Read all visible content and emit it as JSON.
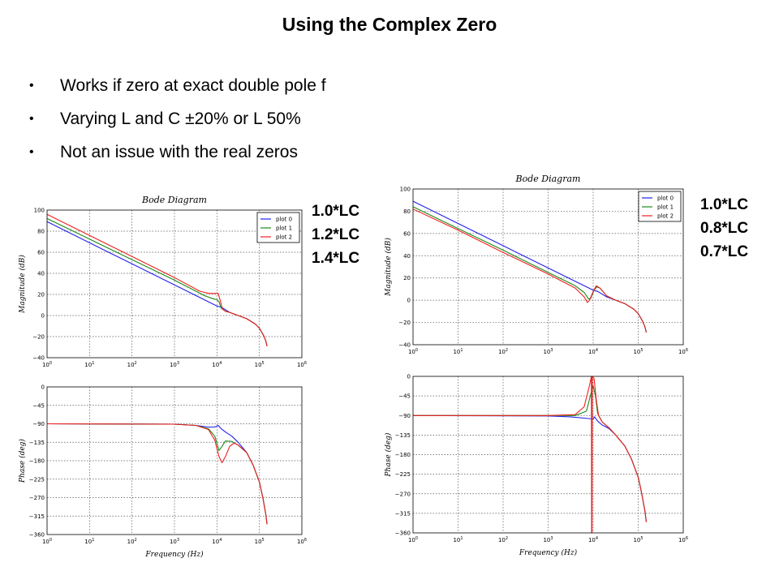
{
  "slide": {
    "title": "Using the Complex Zero",
    "bullets": [
      "Works if zero at exact double pole f",
      "Varying L and C ±20% or L 50%",
      "Not an issue with the real zeros"
    ],
    "left_labels": [
      "1.0*LC",
      "1.2*LC",
      "1.4*LC"
    ],
    "right_labels": [
      "1.0*LC",
      "0.8*LC",
      "0.7*LC"
    ]
  },
  "colors": {
    "plot0": "#2020ee",
    "plot1": "#1a8a1a",
    "plot2": "#ee2020"
  },
  "chart_data": [
    {
      "id": "left-magnitude",
      "type": "line",
      "title": "Bode Diagram",
      "xlabel": "",
      "ylabel": "Magnitude (dB)",
      "xscale": "log",
      "x_tick_base": "10",
      "x_tick_exponents": [
        0,
        1,
        2,
        3,
        4,
        5,
        6
      ],
      "xlim_log10": [
        0,
        6
      ],
      "ylim": [
        -40,
        100
      ],
      "yticks": [
        -40,
        -20,
        0,
        20,
        40,
        60,
        80,
        100
      ],
      "grid": true,
      "legend": "top-right",
      "series": [
        {
          "name": "plot 0",
          "points_log10x": [
            [
              0,
              89
            ],
            [
              1,
              69
            ],
            [
              2,
              49
            ],
            [
              3,
              29
            ],
            [
              3.8,
              13
            ],
            [
              4,
              9
            ],
            [
              4.1,
              8
            ],
            [
              4.3,
              3
            ],
            [
              4.5,
              0
            ],
            [
              4.7,
              -3
            ],
            [
              4.9,
              -8
            ],
            [
              5,
              -12
            ],
            [
              5.1,
              -19
            ],
            [
              5.15,
              -24
            ],
            [
              5.18,
              -29
            ]
          ]
        },
        {
          "name": "plot 1",
          "points_log10x": [
            [
              0,
              92
            ],
            [
              1,
              72.5
            ],
            [
              2,
              53
            ],
            [
              3,
              33.5
            ],
            [
              3.7,
              19
            ],
            [
              3.9,
              16
            ],
            [
              4,
              15
            ],
            [
              4.05,
              13
            ],
            [
              4.1,
              7
            ],
            [
              4.2,
              4
            ],
            [
              4.3,
              3
            ],
            [
              4.5,
              0
            ],
            [
              4.7,
              -3
            ],
            [
              4.9,
              -8
            ],
            [
              5,
              -12
            ],
            [
              5.1,
              -19
            ],
            [
              5.15,
              -24
            ],
            [
              5.18,
              -29
            ]
          ]
        },
        {
          "name": "plot 2",
          "points_log10x": [
            [
              0,
              96
            ],
            [
              1,
              76
            ],
            [
              2,
              56
            ],
            [
              3,
              36
            ],
            [
              3.6,
              23
            ],
            [
              3.8,
              21
            ],
            [
              3.95,
              21
            ],
            [
              4.03,
              21
            ],
            [
              4.08,
              14
            ],
            [
              4.13,
              6
            ],
            [
              4.2,
              4
            ],
            [
              4.3,
              3
            ],
            [
              4.5,
              0
            ],
            [
              4.7,
              -3
            ],
            [
              4.9,
              -8
            ],
            [
              5,
              -12
            ],
            [
              5.1,
              -19
            ],
            [
              5.15,
              -24
            ],
            [
              5.18,
              -29
            ]
          ]
        }
      ]
    },
    {
      "id": "left-phase",
      "type": "line",
      "title": "",
      "xlabel": "Frequency (Hz)",
      "ylabel": "Phase (deg)",
      "xscale": "log",
      "x_tick_base": "10",
      "x_tick_exponents": [
        0,
        1,
        2,
        3,
        4,
        5,
        6
      ],
      "xlim_log10": [
        0,
        6
      ],
      "ylim": [
        -360,
        0
      ],
      "yticks": [
        -360,
        -315,
        -270,
        -225,
        -180,
        -135,
        -90,
        -45,
        0
      ],
      "grid": true,
      "legend": "none",
      "series": [
        {
          "name": "plot 0",
          "points_log10x": [
            [
              0,
              -90
            ],
            [
              3,
              -91
            ],
            [
              3.5,
              -94
            ],
            [
              3.8,
              -98
            ],
            [
              3.95,
              -98
            ],
            [
              4.03,
              -94
            ],
            [
              4.1,
              -102
            ],
            [
              4.2,
              -110
            ],
            [
              4.35,
              -120
            ],
            [
              4.5,
              -135
            ],
            [
              4.7,
              -160
            ],
            [
              4.85,
              -190
            ],
            [
              5,
              -232
            ],
            [
              5.08,
              -270
            ],
            [
              5.15,
              -310
            ],
            [
              5.18,
              -335
            ]
          ]
        },
        {
          "name": "plot 1",
          "points_log10x": [
            [
              0,
              -90
            ],
            [
              3,
              -91
            ],
            [
              3.5,
              -94
            ],
            [
              3.8,
              -102
            ],
            [
              3.95,
              -120
            ],
            [
              4.05,
              -155
            ],
            [
              4.12,
              -145
            ],
            [
              4.2,
              -132
            ],
            [
              4.35,
              -133
            ],
            [
              4.5,
              -142
            ],
            [
              4.7,
              -160
            ],
            [
              4.85,
              -190
            ],
            [
              5,
              -232
            ],
            [
              5.08,
              -270
            ],
            [
              5.15,
              -310
            ],
            [
              5.18,
              -335
            ]
          ]
        },
        {
          "name": "plot 2",
          "points_log10x": [
            [
              0,
              -90
            ],
            [
              3,
              -91
            ],
            [
              3.5,
              -94
            ],
            [
              3.8,
              -104
            ],
            [
              3.95,
              -130
            ],
            [
              4.05,
              -170
            ],
            [
              4.12,
              -185
            ],
            [
              4.2,
              -170
            ],
            [
              4.3,
              -145
            ],
            [
              4.4,
              -137
            ],
            [
              4.5,
              -142
            ],
            [
              4.7,
              -160
            ],
            [
              4.85,
              -190
            ],
            [
              5,
              -232
            ],
            [
              5.08,
              -270
            ],
            [
              5.15,
              -310
            ],
            [
              5.18,
              -335
            ]
          ]
        }
      ]
    },
    {
      "id": "right-magnitude",
      "type": "line",
      "title": "Bode Diagram",
      "xlabel": "",
      "ylabel": "Magnitude (dB)",
      "xscale": "log",
      "x_tick_base": "10",
      "x_tick_exponents": [
        0,
        1,
        2,
        3,
        4,
        5,
        6
      ],
      "xlim_log10": [
        0,
        6
      ],
      "ylim": [
        -40,
        100
      ],
      "yticks": [
        -40,
        -20,
        0,
        20,
        40,
        60,
        80,
        100
      ],
      "grid": true,
      "legend": "top-right",
      "series": [
        {
          "name": "plot 0",
          "points_log10x": [
            [
              0,
              89
            ],
            [
              1,
              69
            ],
            [
              2,
              49
            ],
            [
              3,
              29
            ],
            [
              3.8,
              13
            ],
            [
              4,
              9
            ],
            [
              4.1,
              8
            ],
            [
              4.3,
              3
            ],
            [
              4.5,
              0
            ],
            [
              4.7,
              -3
            ],
            [
              4.9,
              -8
            ],
            [
              5,
              -12
            ],
            [
              5.1,
              -19
            ],
            [
              5.15,
              -24
            ],
            [
              5.18,
              -29
            ]
          ]
        },
        {
          "name": "plot 1",
          "points_log10x": [
            [
              0,
              84
            ],
            [
              1,
              64.5
            ],
            [
              2,
              45
            ],
            [
              3,
              25
            ],
            [
              3.6,
              13
            ],
            [
              3.8,
              7
            ],
            [
              3.9,
              1
            ],
            [
              3.95,
              2
            ],
            [
              4.02,
              9
            ],
            [
              4.08,
              12
            ],
            [
              4.15,
              11
            ],
            [
              4.3,
              4
            ],
            [
              4.5,
              0
            ],
            [
              4.7,
              -3
            ],
            [
              4.9,
              -8
            ],
            [
              5,
              -12
            ],
            [
              5.1,
              -19
            ],
            [
              5.15,
              -24
            ],
            [
              5.18,
              -29
            ]
          ]
        },
        {
          "name": "plot 2",
          "points_log10x": [
            [
              0,
              82
            ],
            [
              1,
              63
            ],
            [
              2,
              43
            ],
            [
              3,
              23.5
            ],
            [
              3.6,
              11
            ],
            [
              3.8,
              3
            ],
            [
              3.87,
              -2
            ],
            [
              3.92,
              0
            ],
            [
              4,
              8
            ],
            [
              4.07,
              13
            ],
            [
              4.15,
              11
            ],
            [
              4.3,
              4
            ],
            [
              4.5,
              0
            ],
            [
              4.7,
              -3
            ],
            [
              4.9,
              -8
            ],
            [
              5,
              -12
            ],
            [
              5.1,
              -19
            ],
            [
              5.15,
              -24
            ],
            [
              5.18,
              -29
            ]
          ]
        }
      ]
    },
    {
      "id": "right-phase",
      "type": "line",
      "title": "",
      "xlabel": "Frequency (Hz)",
      "ylabel": "Phase (deg)",
      "xscale": "log",
      "x_tick_base": "10",
      "x_tick_exponents": [
        0,
        1,
        2,
        3,
        4,
        5,
        6
      ],
      "xlim_log10": [
        0,
        6
      ],
      "ylim": [
        -360,
        0
      ],
      "yticks": [
        -360,
        -315,
        -270,
        -225,
        -180,
        -135,
        -90,
        -45,
        0
      ],
      "grid": true,
      "legend": "none",
      "series": [
        {
          "name": "plot 0",
          "points_log10x": [
            [
              0,
              -90
            ],
            [
              3,
              -91
            ],
            [
              3.5,
              -93
            ],
            [
              3.8,
              -96
            ],
            [
              4,
              -98
            ],
            [
              4.03,
              -93
            ],
            [
              4.1,
              -103
            ],
            [
              4.2,
              -112
            ],
            [
              4.35,
              -120
            ],
            [
              4.5,
              -135
            ],
            [
              4.7,
              -160
            ],
            [
              4.85,
              -190
            ],
            [
              5,
              -232
            ],
            [
              5.08,
              -270
            ],
            [
              5.15,
              -310
            ],
            [
              5.18,
              -335
            ]
          ]
        },
        {
          "name": "plot 1",
          "points_log10x": [
            [
              0,
              -90
            ],
            [
              3,
              -90
            ],
            [
              3.6,
              -90
            ],
            [
              3.85,
              -80
            ],
            [
              3.95,
              -40
            ],
            [
              4,
              -22
            ],
            [
              4.05,
              -45
            ],
            [
              4.1,
              -85
            ],
            [
              4.2,
              -105
            ],
            [
              4.35,
              -118
            ],
            [
              4.5,
              -135
            ],
            [
              4.7,
              -160
            ],
            [
              4.85,
              -190
            ],
            [
              5,
              -232
            ],
            [
              5.08,
              -270
            ],
            [
              5.15,
              -310
            ],
            [
              5.18,
              -335
            ]
          ]
        },
        {
          "name": "plot 2",
          "points_log10x": [
            [
              0,
              -90
            ],
            [
              3,
              -90
            ],
            [
              3.6,
              -88
            ],
            [
              3.8,
              -70
            ],
            [
              3.92,
              -20
            ],
            [
              3.96,
              0
            ],
            [
              3.965,
              -360
            ],
            [
              3.975,
              -360
            ],
            [
              3.98,
              0
            ],
            [
              4.02,
              -5
            ],
            [
              4.07,
              -55
            ],
            [
              4.12,
              -90
            ],
            [
              4.2,
              -105
            ],
            [
              4.35,
              -118
            ],
            [
              4.5,
              -135
            ],
            [
              4.7,
              -160
            ],
            [
              4.85,
              -190
            ],
            [
              5,
              -232
            ],
            [
              5.08,
              -270
            ],
            [
              5.15,
              -310
            ],
            [
              5.18,
              -335
            ]
          ]
        }
      ]
    }
  ]
}
